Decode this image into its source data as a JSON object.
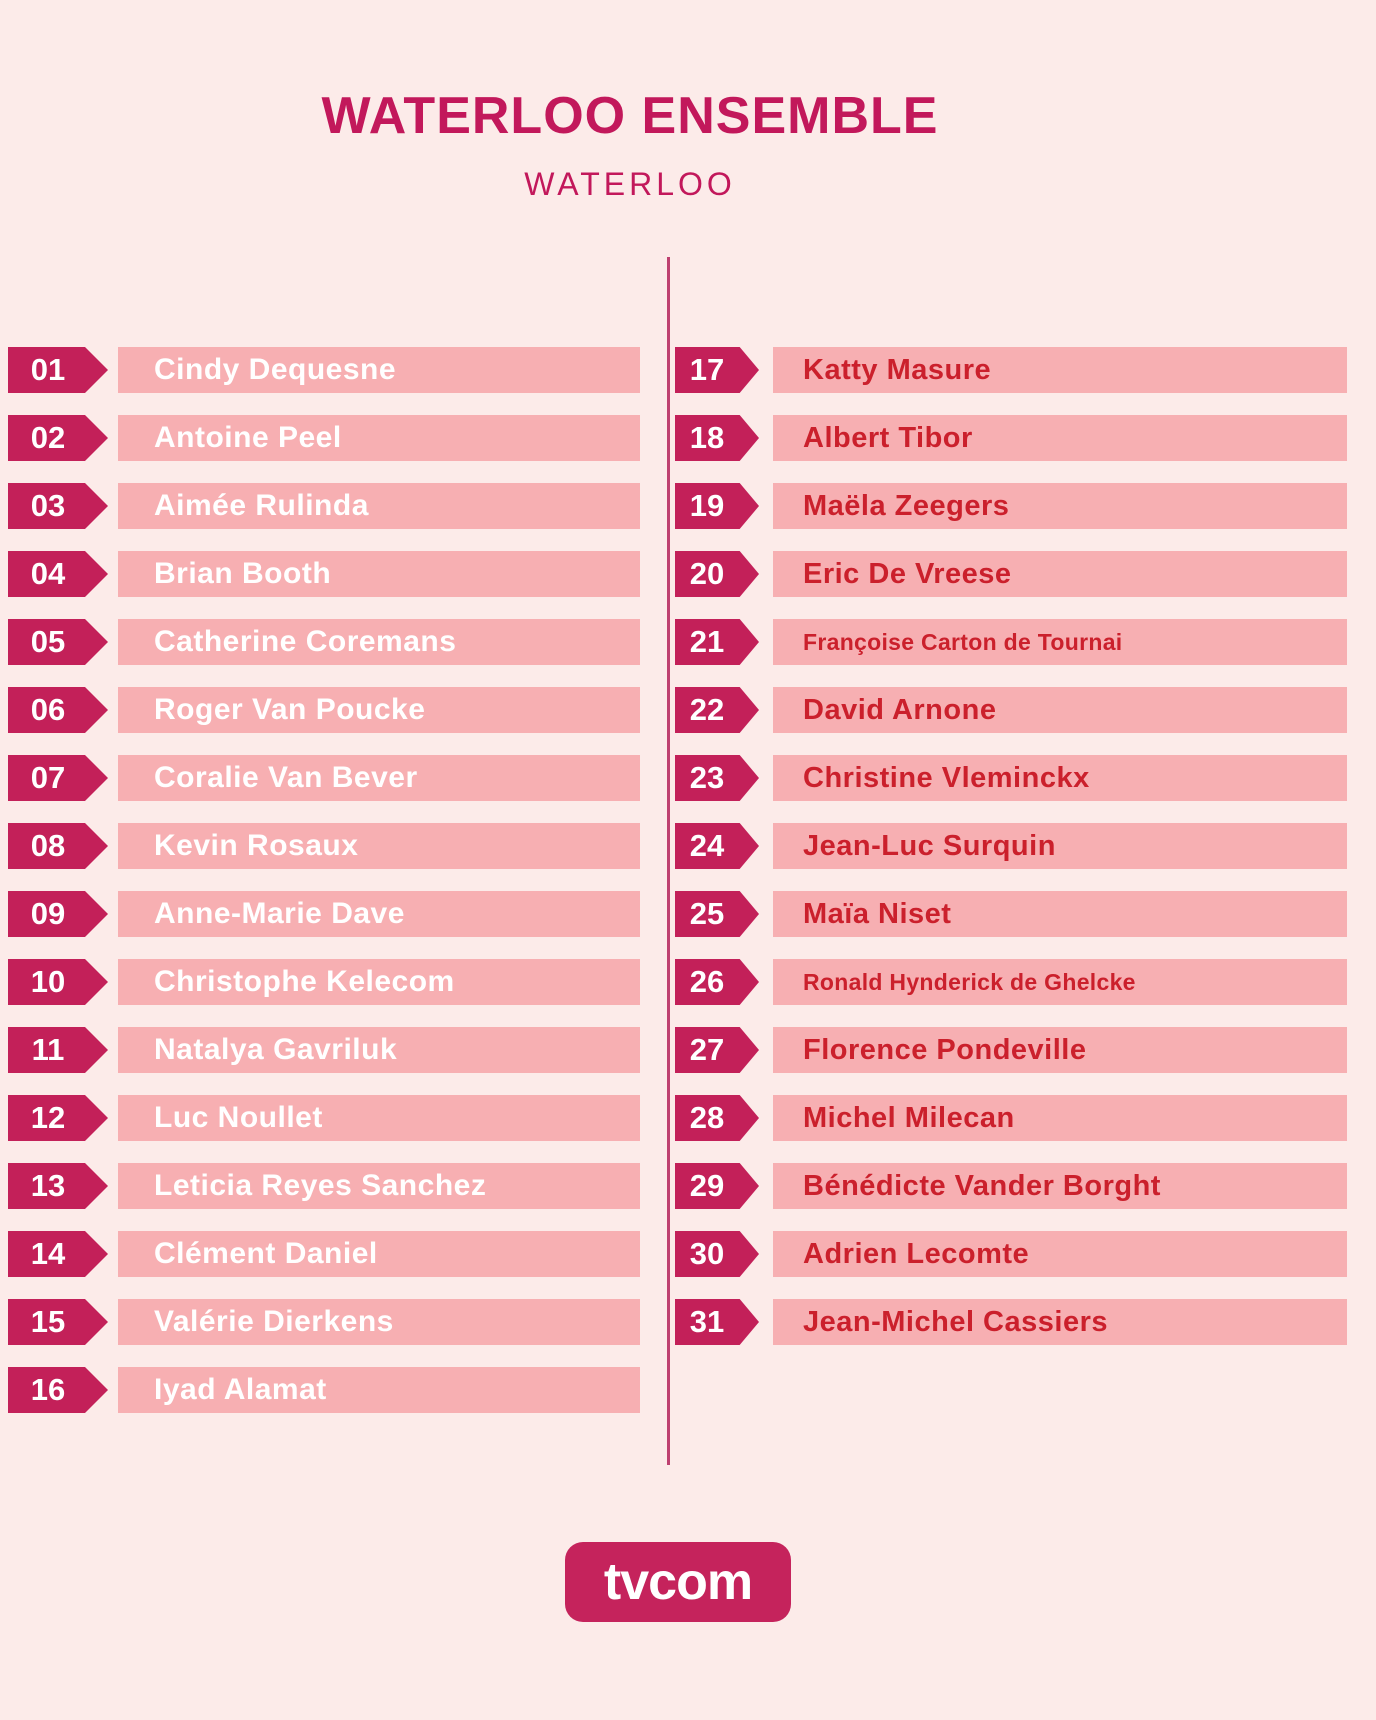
{
  "title": "WATERLOO ENSEMBLE",
  "subtitle": "WATERLOO",
  "logo": "tvcom",
  "colors": {
    "background": "#FCEBE9",
    "bar": "#F7AFB2",
    "badge": "#C32059",
    "title": "#C2185B",
    "name_left": "#FFFFFF",
    "name_right": "#CB202C",
    "divider": "#BE4070",
    "logo_bg": "#C5235C",
    "logo_text": "#FFFFFF"
  },
  "left_column": [
    {
      "number": "01",
      "name": "Cindy Dequesne"
    },
    {
      "number": "02",
      "name": "Antoine Peel"
    },
    {
      "number": "03",
      "name": "Aimée Rulinda"
    },
    {
      "number": "04",
      "name": "Brian Booth"
    },
    {
      "number": "05",
      "name": "Catherine Coremans"
    },
    {
      "number": "06",
      "name": "Roger Van Poucke"
    },
    {
      "number": "07",
      "name": "Coralie Van Bever"
    },
    {
      "number": "08",
      "name": "Kevin Rosaux"
    },
    {
      "number": "09",
      "name": "Anne-Marie Dave"
    },
    {
      "number": "10",
      "name": "Christophe Kelecom"
    },
    {
      "number": "11",
      "name": "Natalya Gavriluk"
    },
    {
      "number": "12",
      "name": "Luc Noullet"
    },
    {
      "number": "13",
      "name": "Leticia Reyes Sanchez"
    },
    {
      "number": "14",
      "name": "Clément Daniel"
    },
    {
      "number": "15",
      "name": "Valérie Dierkens"
    },
    {
      "number": "16",
      "name": "Iyad Alamat"
    }
  ],
  "right_column": [
    {
      "number": "17",
      "name": "Katty Masure"
    },
    {
      "number": "18",
      "name": "Albert Tibor"
    },
    {
      "number": "19",
      "name": "Maëla Zeegers"
    },
    {
      "number": "20",
      "name": "Eric De Vreese"
    },
    {
      "number": "21",
      "name": "Françoise Carton de Tournai"
    },
    {
      "number": "22",
      "name": "David Arnone"
    },
    {
      "number": "23",
      "name": "Christine Vleminckx"
    },
    {
      "number": "24",
      "name": "Jean-Luc Surquin"
    },
    {
      "number": "25",
      "name": "Maïa Niset"
    },
    {
      "number": "26",
      "name": "Ronald Hynderick de Ghelcke"
    },
    {
      "number": "27",
      "name": "Florence Pondeville"
    },
    {
      "number": "28",
      "name": "Michel Milecan"
    },
    {
      "number": "29",
      "name": "Bénédicte Vander Borght"
    },
    {
      "number": "30",
      "name": "Adrien Lecomte"
    },
    {
      "number": "31",
      "name": "Jean-Michel Cassiers"
    }
  ]
}
